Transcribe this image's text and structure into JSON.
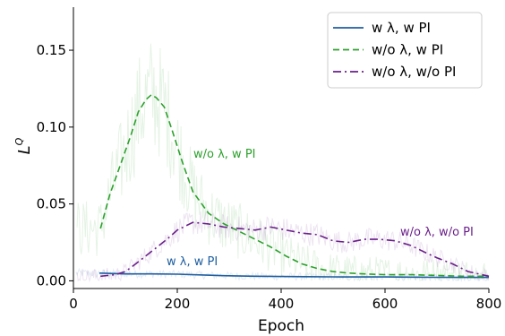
{
  "chart_data": {
    "type": "line",
    "xlabel": "Epoch",
    "ylabel": "L",
    "ylabel_sup": "Q",
    "xlim": [
      0,
      800
    ],
    "ylim": [
      -0.005,
      0.178
    ],
    "xticks": [
      0,
      200,
      400,
      600,
      800
    ],
    "xtick_labels": [
      "0",
      "200",
      "400",
      "600",
      "800"
    ],
    "yticks": [
      0.0,
      0.05,
      0.1,
      0.15
    ],
    "ytick_labels": [
      "0.00",
      "0.05",
      "0.10",
      "0.15"
    ],
    "grid": false,
    "legend_position": "top-right",
    "series": [
      {
        "name": "w λ, w PI",
        "color": "#1f5ea0",
        "dash": "solid",
        "annotation": "w λ, w PI",
        "x": [
          50,
          100,
          150,
          200,
          250,
          300,
          350,
          400,
          450,
          500,
          550,
          600,
          650,
          700,
          750,
          800
        ],
        "y": [
          0.005,
          0.0045,
          0.0045,
          0.0043,
          0.0038,
          0.0033,
          0.003,
          0.0028,
          0.0027,
          0.0026,
          0.0025,
          0.0025,
          0.0024,
          0.0023,
          0.0022,
          0.0022
        ]
      },
      {
        "name": "w/o λ, w PI",
        "color": "#2ca02c",
        "dash": "dashed",
        "annotation": "w/o λ, w PI",
        "x": [
          52,
          70,
          90,
          110,
          125,
          140,
          150,
          160,
          175,
          190,
          210,
          230,
          260,
          290,
          320,
          350,
          380,
          410,
          440,
          470,
          500,
          530,
          560,
          600,
          650,
          700,
          750,
          800
        ],
        "y": [
          0.034,
          0.056,
          0.075,
          0.094,
          0.11,
          0.118,
          0.121,
          0.119,
          0.113,
          0.098,
          0.077,
          0.058,
          0.044,
          0.037,
          0.032,
          0.027,
          0.022,
          0.016,
          0.011,
          0.008,
          0.006,
          0.005,
          0.0045,
          0.004,
          0.004,
          0.0035,
          0.003,
          0.003
        ]
      },
      {
        "name": "w/o λ, w/o PI",
        "color": "#6a1f8a",
        "dash": "dashdot",
        "annotation": "w/o λ, w/o PI",
        "x": [
          52,
          80,
          100,
          120,
          150,
          180,
          200,
          230,
          260,
          290,
          320,
          350,
          380,
          410,
          440,
          470,
          500,
          530,
          560,
          590,
          620,
          650,
          680,
          700,
          730,
          760,
          800
        ],
        "y": [
          0.003,
          0.004,
          0.006,
          0.011,
          0.019,
          0.027,
          0.033,
          0.038,
          0.037,
          0.035,
          0.034,
          0.033,
          0.035,
          0.033,
          0.031,
          0.03,
          0.026,
          0.025,
          0.027,
          0.027,
          0.026,
          0.023,
          0.018,
          0.015,
          0.011,
          0.006,
          0.003
        ]
      }
    ]
  }
}
